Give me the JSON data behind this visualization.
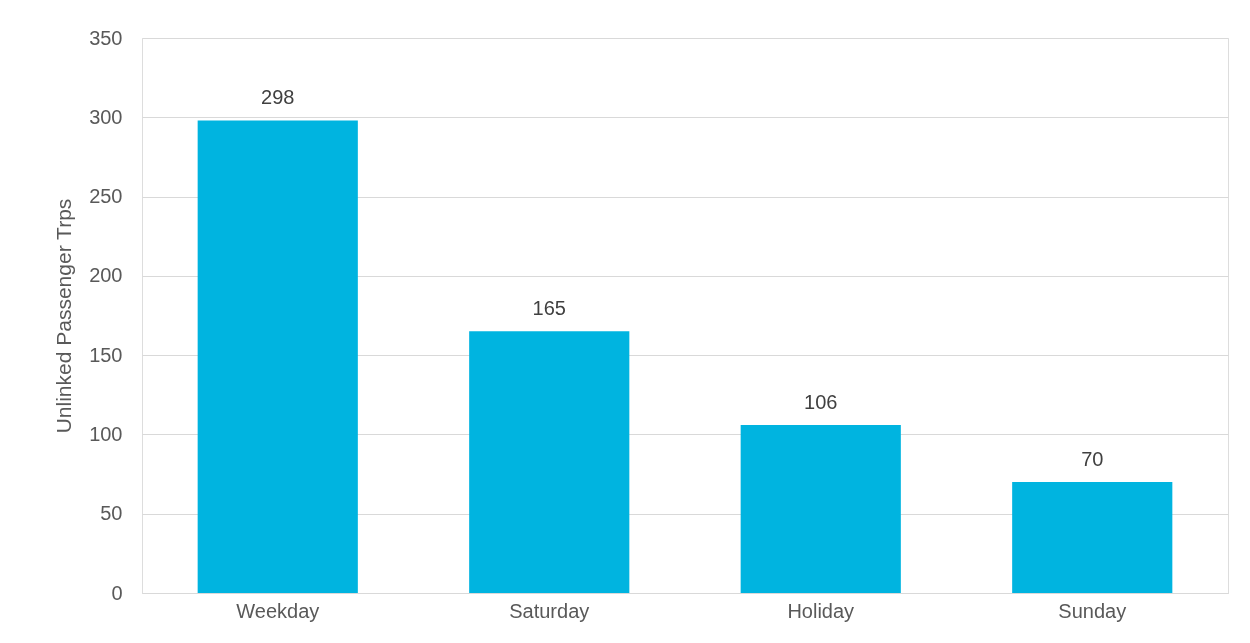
{
  "chart_data": {
    "type": "bar",
    "ylabel": "Unlinked Passenger Trps",
    "categories": [
      "Weekday",
      "Saturday",
      "Holiday",
      "Sunday"
    ],
    "values": [
      298,
      165,
      106,
      70
    ],
    "color": "#00b4e0",
    "ylim": [
      0,
      350
    ],
    "yticks": [
      0,
      50,
      100,
      150,
      200,
      250,
      300,
      350
    ],
    "grid": "y",
    "data_labels": true
  }
}
